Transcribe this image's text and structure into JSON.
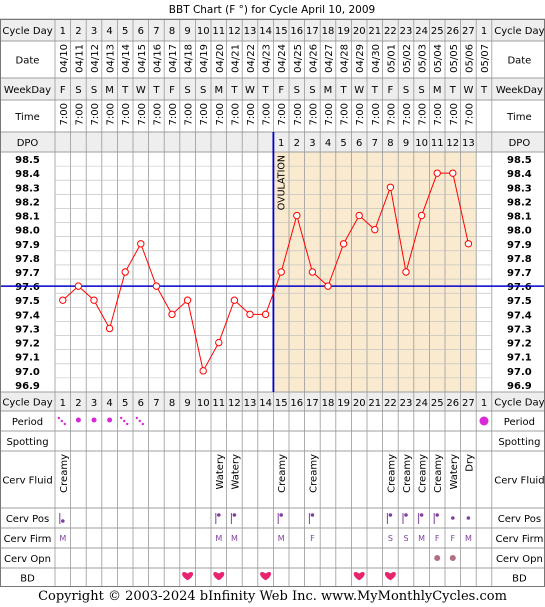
{
  "title": "BBT Chart (F °) for Cycle April 10, 2009",
  "copyright": "Copyright © 2003-2024 bInfinity Web Inc.    www.MyMonthlyCycles.com",
  "row_labels": {
    "cycle_day": "Cycle Day",
    "date": "Date",
    "weekday": "WeekDay",
    "time": "Time",
    "dpo": "DPO",
    "period": "Period",
    "spotting": "Spotting",
    "cerv_fluid": "Cerv Fluid",
    "cerv_pos": "Cerv Pos",
    "cerv_firm": "Cerv Firm",
    "cerv_opn": "Cerv Opn",
    "bd": "BD"
  },
  "ovulation_label": "OVULATION",
  "columns": [
    {
      "cd": "1",
      "date": "04/10",
      "wd": "F",
      "time": "7:00",
      "dpo": "",
      "temp": 97.5,
      "period": "light",
      "fluid": "Creamy",
      "pos": "low",
      "firm": "M",
      "opn": "",
      "bd": false
    },
    {
      "cd": "2",
      "date": "04/11",
      "wd": "S",
      "time": "7:00",
      "dpo": "",
      "temp": 97.6,
      "period": "medium",
      "fluid": "",
      "pos": "",
      "firm": "",
      "opn": "",
      "bd": false
    },
    {
      "cd": "3",
      "date": "04/12",
      "wd": "S",
      "time": "7:00",
      "dpo": "",
      "temp": 97.5,
      "period": "medium",
      "fluid": "",
      "pos": "",
      "firm": "",
      "opn": "",
      "bd": false
    },
    {
      "cd": "4",
      "date": "04/13",
      "wd": "M",
      "time": "7:00",
      "dpo": "",
      "temp": 97.3,
      "period": "medium",
      "fluid": "",
      "pos": "",
      "firm": "",
      "opn": "",
      "bd": false
    },
    {
      "cd": "5",
      "date": "04/14",
      "wd": "T",
      "time": "7:00",
      "dpo": "",
      "temp": 97.7,
      "period": "light",
      "fluid": "",
      "pos": "",
      "firm": "",
      "opn": "",
      "bd": false
    },
    {
      "cd": "6",
      "date": "04/15",
      "wd": "W",
      "time": "7:00",
      "dpo": "",
      "temp": 97.9,
      "period": "light",
      "fluid": "",
      "pos": "",
      "firm": "",
      "opn": "",
      "bd": false
    },
    {
      "cd": "7",
      "date": "04/16",
      "wd": "T",
      "time": "7:00",
      "dpo": "",
      "temp": 97.6,
      "period": "",
      "fluid": "",
      "pos": "",
      "firm": "",
      "opn": "",
      "bd": false
    },
    {
      "cd": "8",
      "date": "04/17",
      "wd": "F",
      "time": "7:00",
      "dpo": "",
      "temp": 97.4,
      "period": "",
      "fluid": "",
      "pos": "",
      "firm": "",
      "opn": "",
      "bd": false
    },
    {
      "cd": "9",
      "date": "04/18",
      "wd": "S",
      "time": "7:00",
      "dpo": "",
      "temp": 97.5,
      "period": "",
      "fluid": "",
      "pos": "",
      "firm": "",
      "opn": "",
      "bd": true
    },
    {
      "cd": "10",
      "date": "04/19",
      "wd": "S",
      "time": "7:00",
      "dpo": "",
      "temp": 97.0,
      "period": "",
      "fluid": "",
      "pos": "",
      "firm": "",
      "opn": "",
      "bd": false
    },
    {
      "cd": "11",
      "date": "04/20",
      "wd": "M",
      "time": "7:00",
      "dpo": "",
      "temp": 97.2,
      "period": "",
      "fluid": "Watery",
      "pos": "high",
      "firm": "M",
      "opn": "",
      "bd": true
    },
    {
      "cd": "12",
      "date": "04/21",
      "wd": "T",
      "time": "7:00",
      "dpo": "",
      "temp": 97.5,
      "period": "",
      "fluid": "Watery",
      "pos": "high",
      "firm": "M",
      "opn": "",
      "bd": false
    },
    {
      "cd": "13",
      "date": "04/22",
      "wd": "W",
      "time": "7:00",
      "dpo": "",
      "temp": 97.4,
      "period": "",
      "fluid": "",
      "pos": "",
      "firm": "",
      "opn": "",
      "bd": false
    },
    {
      "cd": "14",
      "date": "04/23",
      "wd": "T",
      "time": "7:00",
      "dpo": "",
      "temp": 97.4,
      "period": "",
      "fluid": "",
      "pos": "",
      "firm": "",
      "opn": "",
      "bd": true
    },
    {
      "cd": "15",
      "date": "04/24",
      "wd": "F",
      "time": "7:00",
      "dpo": "1",
      "temp": 97.7,
      "period": "",
      "fluid": "Creamy",
      "pos": "high",
      "firm": "M",
      "opn": "",
      "bd": false
    },
    {
      "cd": "16",
      "date": "04/25",
      "wd": "S",
      "time": "7:00",
      "dpo": "2",
      "temp": 98.1,
      "period": "",
      "fluid": "",
      "pos": "",
      "firm": "",
      "opn": "",
      "bd": false
    },
    {
      "cd": "17",
      "date": "04/26",
      "wd": "S",
      "time": "7:00",
      "dpo": "3",
      "temp": 97.7,
      "period": "",
      "fluid": "Creamy",
      "pos": "high",
      "firm": "F",
      "opn": "",
      "bd": false
    },
    {
      "cd": "18",
      "date": "04/27",
      "wd": "M",
      "time": "7:00",
      "dpo": "4",
      "temp": 97.6,
      "period": "",
      "fluid": "",
      "pos": "",
      "firm": "",
      "opn": "",
      "bd": false
    },
    {
      "cd": "19",
      "date": "04/28",
      "wd": "T",
      "time": "7:00",
      "dpo": "5",
      "temp": 97.9,
      "period": "",
      "fluid": "",
      "pos": "",
      "firm": "",
      "opn": "",
      "bd": false
    },
    {
      "cd": "20",
      "date": "04/29",
      "wd": "W",
      "time": "7:00",
      "dpo": "6",
      "temp": 98.1,
      "period": "",
      "fluid": "",
      "pos": "",
      "firm": "",
      "opn": "",
      "bd": true
    },
    {
      "cd": "21",
      "date": "04/30",
      "wd": "T",
      "time": "7:00",
      "dpo": "7",
      "temp": 98.0,
      "period": "",
      "fluid": "",
      "pos": "",
      "firm": "",
      "opn": "",
      "bd": false
    },
    {
      "cd": "22",
      "date": "05/01",
      "wd": "F",
      "time": "7:00",
      "dpo": "8",
      "temp": 98.3,
      "period": "",
      "fluid": "Creamy",
      "pos": "high",
      "firm": "S",
      "opn": "",
      "bd": true
    },
    {
      "cd": "23",
      "date": "05/02",
      "wd": "S",
      "time": "7:00",
      "dpo": "9",
      "temp": 97.7,
      "period": "",
      "fluid": "Creamy",
      "pos": "high",
      "firm": "S",
      "opn": "",
      "bd": false
    },
    {
      "cd": "24",
      "date": "05/03",
      "wd": "S",
      "time": "7:00",
      "dpo": "10",
      "temp": 98.1,
      "period": "",
      "fluid": "Creamy",
      "pos": "high",
      "firm": "M",
      "opn": "",
      "bd": false
    },
    {
      "cd": "25",
      "date": "05/04",
      "wd": "M",
      "time": "7:00",
      "dpo": "11",
      "temp": 98.4,
      "period": "",
      "fluid": "Creamy",
      "pos": "high",
      "firm": "F",
      "opn": "dot",
      "bd": false
    },
    {
      "cd": "26",
      "date": "05/05",
      "wd": "T",
      "time": "7:00",
      "dpo": "12",
      "temp": 98.4,
      "period": "",
      "fluid": "Watery",
      "pos": "mid",
      "firm": "F",
      "opn": "dot",
      "bd": false
    },
    {
      "cd": "27",
      "date": "05/06",
      "wd": "W",
      "time": "7:00",
      "dpo": "13",
      "temp": 97.9,
      "period": "",
      "fluid": "Dry",
      "pos": "mid",
      "firm": "M",
      "opn": "",
      "bd": false
    },
    {
      "cd": "1",
      "date": "05/07",
      "wd": "T",
      "time": "",
      "dpo": "",
      "temp": null,
      "period": "heavy",
      "fluid": "",
      "pos": "",
      "firm": "",
      "opn": "",
      "bd": false
    }
  ],
  "chart_data": {
    "type": "line",
    "title": "BBT Chart (F °) for Cycle April 10, 2009",
    "x": [
      "1",
      "2",
      "3",
      "4",
      "5",
      "6",
      "7",
      "8",
      "9",
      "10",
      "11",
      "12",
      "13",
      "14",
      "15",
      "16",
      "17",
      "18",
      "19",
      "20",
      "21",
      "22",
      "23",
      "24",
      "25",
      "26",
      "27",
      "1"
    ],
    "series": [
      {
        "values": [
          97.5,
          97.6,
          97.5,
          97.3,
          97.7,
          97.9,
          97.6,
          97.4,
          97.5,
          97.0,
          97.2,
          97.5,
          97.4,
          97.4,
          97.7,
          98.1,
          97.7,
          97.6,
          97.9,
          98.1,
          98.0,
          98.3,
          97.7,
          98.1,
          98.4,
          98.4,
          97.9,
          null
        ]
      }
    ],
    "y_ticks": [
      "98.5",
      "98.4",
      "98.3",
      "98.2",
      "98.1",
      "98.0",
      "97.9",
      "97.8",
      "97.7",
      "97.6",
      "97.5",
      "97.4",
      "97.3",
      "97.2",
      "97.1",
      "97.0",
      "96.9"
    ],
    "ylim": [
      96.9,
      98.5
    ],
    "coverline": 97.6,
    "ovulation_after_day": "14",
    "grid": true,
    "colors": {
      "line": "#ff0000",
      "coverline": "#0000cc",
      "ovulation": "#0000cc",
      "luteal_fill": "#faebd0",
      "bd_heart": "#e8246e",
      "period": "#d828d8"
    }
  }
}
